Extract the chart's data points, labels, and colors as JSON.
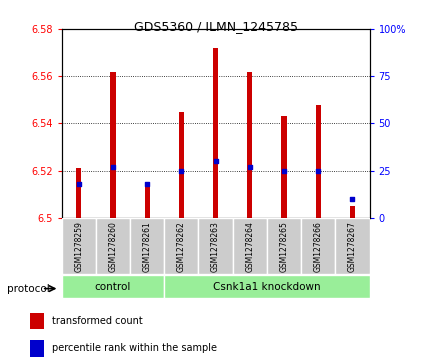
{
  "title": "GDS5360 / ILMN_1245785",
  "samples": [
    "GSM1278259",
    "GSM1278260",
    "GSM1278261",
    "GSM1278262",
    "GSM1278263",
    "GSM1278264",
    "GSM1278265",
    "GSM1278266",
    "GSM1278267"
  ],
  "bar_bottom": 6.5,
  "bar_tops": [
    6.521,
    6.562,
    6.515,
    6.545,
    6.572,
    6.562,
    6.543,
    6.548,
    6.505
  ],
  "percentile_ranks": [
    18,
    27,
    18,
    25,
    30,
    27,
    25,
    25,
    10
  ],
  "ylim": [
    6.5,
    6.58
  ],
  "y2lim": [
    0,
    100
  ],
  "yticks": [
    6.5,
    6.52,
    6.54,
    6.56,
    6.58
  ],
  "y2ticks": [
    0,
    25,
    50,
    75,
    100
  ],
  "bar_color": "#cc0000",
  "dot_color": "#0000cc",
  "bar_width": 0.15,
  "control_label": "control",
  "knockdown_label": "Csnk1a1 knockdown",
  "protocol_label": "protocol",
  "group_bg_color": "#99ee99",
  "sample_bg_color": "#cccccc",
  "legend_bar_label": "transformed count",
  "legend_dot_label": "percentile rank within the sample",
  "n_control": 3,
  "n_knockdown": 6
}
